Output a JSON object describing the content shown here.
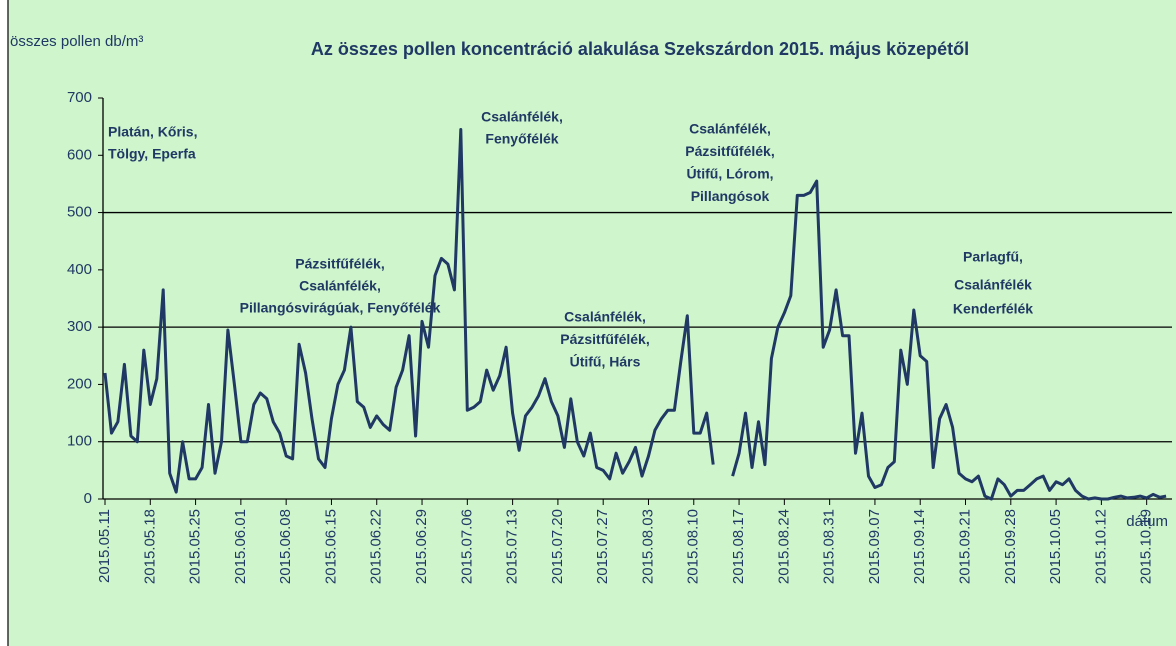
{
  "chart_data": {
    "type": "line",
    "title": "Az összes pollen koncentráció alakulása Szekszárdon 2015.  május közepétől",
    "y_label": "összes pollen db/m³",
    "x_label": "dátum",
    "categories": [
      "2015.05.11",
      null,
      null,
      null,
      null,
      null,
      null,
      "2015.05.18",
      null,
      null,
      null,
      null,
      null,
      null,
      "2015.05.25",
      null,
      null,
      null,
      null,
      null,
      null,
      "2015.06.01",
      null,
      null,
      null,
      null,
      null,
      null,
      "2015.06.08",
      null,
      null,
      null,
      null,
      null,
      null,
      "2015.06.15",
      null,
      null,
      null,
      null,
      null,
      null,
      "2015.06.22",
      null,
      null,
      null,
      null,
      null,
      null,
      "2015.06.29",
      null,
      null,
      null,
      null,
      null,
      null,
      "2015.07.06",
      null,
      null,
      null,
      null,
      null,
      null,
      "2015.07.13",
      null,
      null,
      null,
      null,
      null,
      null,
      "2015.07.20",
      null,
      null,
      null,
      null,
      null,
      null,
      "2015.07.27",
      null,
      null,
      null,
      null,
      null,
      null,
      "2015.08.03",
      null,
      null,
      null,
      null,
      null,
      null,
      "2015.08.10",
      null,
      null,
      null,
      null,
      null,
      null,
      "2015.08.17",
      null,
      null,
      null,
      null,
      null,
      null,
      "2015.08.24",
      null,
      null,
      null,
      null,
      null,
      null,
      "2015.08.31",
      null,
      null,
      null,
      null,
      null,
      null,
      "2015.09.07",
      null,
      null,
      null,
      null,
      null,
      null,
      "2015.09.14",
      null,
      null,
      null,
      null,
      null,
      null,
      "2015.09.21",
      null,
      null,
      null,
      null,
      null,
      null,
      "2015.09.28",
      null,
      null,
      null,
      null,
      null,
      null,
      "2015.10.05",
      null,
      null,
      null,
      null,
      null,
      null,
      "2015.10.12",
      null,
      null,
      null,
      null,
      null,
      null,
      "2015.10.19",
      null,
      null,
      null
    ],
    "series": [
      {
        "name": "összes pollen",
        "color": "#1f3864",
        "values": [
          220,
          115,
          135,
          235,
          110,
          100,
          260,
          165,
          210,
          365,
          45,
          12,
          100,
          35,
          35,
          55,
          165,
          45,
          100,
          295,
          200,
          100,
          100,
          165,
          185,
          175,
          135,
          115,
          75,
          70,
          270,
          220,
          140,
          70,
          55,
          140,
          200,
          225,
          300,
          170,
          160,
          125,
          145,
          130,
          120,
          195,
          225,
          285,
          110,
          310,
          265,
          390,
          420,
          410,
          365,
          645,
          155,
          160,
          170,
          225,
          190,
          215,
          265,
          150,
          85,
          145,
          160,
          180,
          210,
          170,
          145,
          90,
          175,
          100,
          75,
          115,
          55,
          50,
          35,
          80,
          45,
          65,
          90,
          40,
          75,
          120,
          140,
          155,
          155,
          240,
          320,
          115,
          115,
          150,
          60,
          null,
          null,
          40,
          80,
          150,
          55,
          135,
          60,
          245,
          300,
          325,
          355,
          530,
          530,
          535,
          555,
          265,
          295,
          365,
          285,
          285,
          80,
          150,
          40,
          20,
          25,
          55,
          65,
          260,
          200,
          330,
          250,
          240,
          55,
          140,
          165,
          125,
          45,
          35,
          30,
          40,
          5,
          0,
          35,
          25,
          5,
          15,
          15,
          25,
          35,
          40,
          15,
          30,
          25,
          35,
          15,
          5,
          0,
          2,
          0,
          0,
          3,
          5,
          2,
          3,
          5,
          2,
          8,
          3,
          5
        ]
      }
    ],
    "ylim": [
      0,
      700
    ],
    "yticks": [
      0,
      100,
      200,
      300,
      400,
      500,
      600,
      700
    ],
    "grid_values": [
      100,
      300,
      500
    ],
    "annotations": [
      {
        "lines": [
          "Platán, Kőris,",
          "Tölgy, Eperfa"
        ]
      },
      {
        "lines": [
          "Pázsitfűfélék,",
          "Csalánfélék,",
          "Pillangósvirágúak, Fenyőfélék"
        ]
      },
      {
        "lines": [
          "Csalánfélék,",
          "Fenyőfélék"
        ]
      },
      {
        "lines": [
          "Csalánfélék,",
          "Pázsitfűfélék,",
          "Útifű, Lórom,",
          "Pillangósok"
        ]
      },
      {
        "lines": [
          "Csalánfélék,",
          "Pázsitfűfélék,",
          "Útifű, Hárs"
        ]
      },
      {
        "lines": [
          "Parlagfű,",
          "Csalánfélék",
          "Kenderfélék"
        ]
      }
    ]
  }
}
